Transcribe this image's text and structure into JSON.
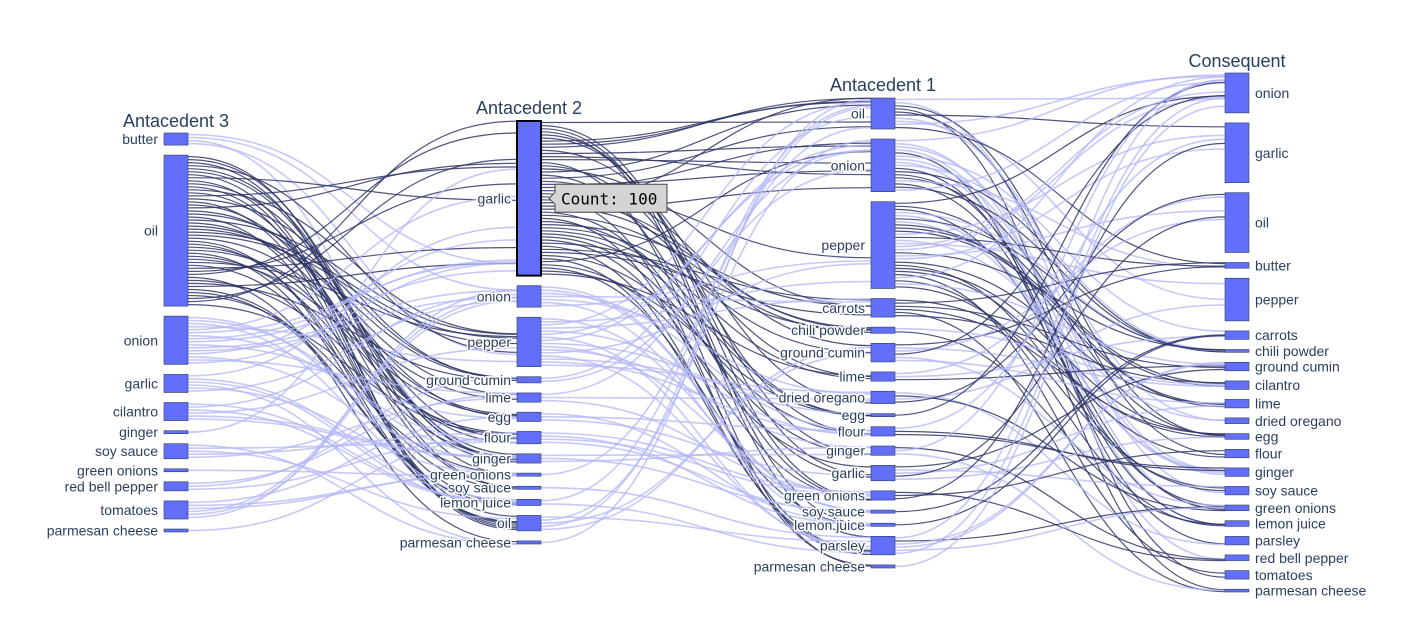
{
  "chart_data": {
    "type": "parallel-categories",
    "colors": {
      "bar": "#636efa",
      "bar_stroke": "#2a3f5f",
      "ribbon_light": "#b3b7f5",
      "ribbon_dark": "#2e3566",
      "text": "#2a3f5f",
      "tooltip_bg": "#d4d4d4"
    },
    "dimensions": [
      {
        "label": "Antacedent 3",
        "categories": [
          {
            "label": "butter",
            "count": 8
          },
          {
            "label": "oil",
            "count": 100
          },
          {
            "label": "onion",
            "count": 32
          },
          {
            "label": "garlic",
            "count": 12
          },
          {
            "label": "cilantro",
            "count": 12
          },
          {
            "label": "ginger",
            "count": 2
          },
          {
            "label": "soy sauce",
            "count": 10
          },
          {
            "label": "green onions",
            "count": 2
          },
          {
            "label": "red bell pepper",
            "count": 6
          },
          {
            "label": "tomatoes",
            "count": 12
          },
          {
            "label": "parmesan cheese",
            "count": 2
          }
        ]
      },
      {
        "label": "Antacedent 2",
        "categories": [
          {
            "label": "garlic",
            "count": 100
          },
          {
            "label": "onion",
            "count": 14
          },
          {
            "label": "pepper",
            "count": 32
          },
          {
            "label": "ground cumin",
            "count": 4
          },
          {
            "label": "lime",
            "count": 6
          },
          {
            "label": "egg",
            "count": 6
          },
          {
            "label": "flour",
            "count": 8
          },
          {
            "label": "ginger",
            "count": 6
          },
          {
            "label": "green onions",
            "count": 2
          },
          {
            "label": "soy sauce",
            "count": 2
          },
          {
            "label": "lemon juice",
            "count": 4
          },
          {
            "label": "oil",
            "count": 10
          },
          {
            "label": "parmesan cheese",
            "count": 2
          }
        ]
      },
      {
        "label": "Antacedent 1",
        "categories": [
          {
            "label": "oil",
            "count": 20
          },
          {
            "label": "onion",
            "count": 34
          },
          {
            "label": "pepper",
            "count": 56
          },
          {
            "label": "carrots",
            "count": 12
          },
          {
            "label": "chili powder",
            "count": 4
          },
          {
            "label": "ground cumin",
            "count": 12
          },
          {
            "label": "lime",
            "count": 6
          },
          {
            "label": "dried oregano",
            "count": 8
          },
          {
            "label": "egg",
            "count": 2
          },
          {
            "label": "flour",
            "count": 6
          },
          {
            "label": "ginger",
            "count": 6
          },
          {
            "label": "garlic",
            "count": 10
          },
          {
            "label": "green onions",
            "count": 6
          },
          {
            "label": "soy sauce",
            "count": 2
          },
          {
            "label": "lemon juice",
            "count": 2
          },
          {
            "label": "parsley",
            "count": 12
          },
          {
            "label": "parmesan cheese",
            "count": 2
          }
        ]
      },
      {
        "label": "Consequent",
        "categories": [
          {
            "label": "onion",
            "count": 28
          },
          {
            "label": "garlic",
            "count": 42
          },
          {
            "label": "oil",
            "count": 42
          },
          {
            "label": "butter",
            "count": 4
          },
          {
            "label": "pepper",
            "count": 30
          },
          {
            "label": "carrots",
            "count": 6
          },
          {
            "label": "chili powder",
            "count": 2
          },
          {
            "label": "ground cumin",
            "count": 6
          },
          {
            "label": "cilantro",
            "count": 6
          },
          {
            "label": "lime",
            "count": 6
          },
          {
            "label": "dried oregano",
            "count": 4
          },
          {
            "label": "egg",
            "count": 4
          },
          {
            "label": "flour",
            "count": 6
          },
          {
            "label": "ginger",
            "count": 6
          },
          {
            "label": "soy sauce",
            "count": 6
          },
          {
            "label": "green onions",
            "count": 4
          },
          {
            "label": "lemon juice",
            "count": 4
          },
          {
            "label": "parsley",
            "count": 6
          },
          {
            "label": "red bell pepper",
            "count": 4
          },
          {
            "label": "tomatoes",
            "count": 6
          },
          {
            "label": "parmesan cheese",
            "count": 2
          }
        ]
      }
    ],
    "tooltip": {
      "text": "Count: 100",
      "dimension": "Antacedent 2",
      "category": "garlic"
    }
  }
}
